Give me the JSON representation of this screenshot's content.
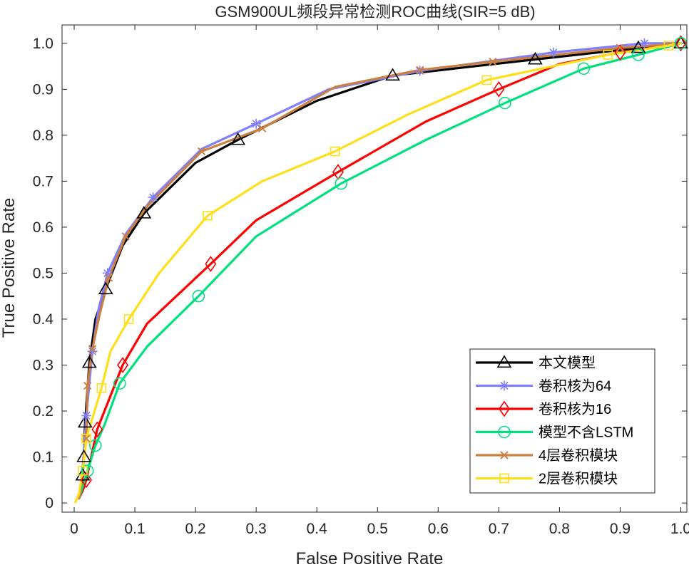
{
  "chart_data": {
    "type": "line",
    "title": "GSM900UL频段异常检测ROC曲线(SIR=5 dB)",
    "xlabel": "False Positive Rate",
    "ylabel": "True Positive Rate",
    "xlim": [
      -0.02,
      1.01
    ],
    "ylim": [
      -0.02,
      1.04
    ],
    "xticks": [
      "0",
      "0.1",
      "0.2",
      "0.3",
      "0.4",
      "0.5",
      "0.6",
      "0.7",
      "0.8",
      "0.9",
      "1.0"
    ],
    "yticks": [
      "0",
      "0.1",
      "0.2",
      "0.3",
      "0.4",
      "0.5",
      "0.6",
      "0.7",
      "0.8",
      "0.9",
      "1.0"
    ],
    "grid": false,
    "legend_position": "bottom-right",
    "series": [
      {
        "name": "本文模型",
        "color": "#000000",
        "marker": "triangle",
        "points": [
          [
            0.008,
            0.01
          ],
          [
            0.012,
            0.03
          ],
          [
            0.014,
            0.06
          ],
          [
            0.016,
            0.1
          ],
          [
            0.018,
            0.175
          ],
          [
            0.025,
            0.305
          ],
          [
            0.035,
            0.4
          ],
          [
            0.052,
            0.465
          ],
          [
            0.08,
            0.56
          ],
          [
            0.115,
            0.63
          ],
          [
            0.2,
            0.74
          ],
          [
            0.27,
            0.79
          ],
          [
            0.4,
            0.875
          ],
          [
            0.525,
            0.93
          ],
          [
            0.76,
            0.965
          ],
          [
            0.93,
            0.99
          ],
          [
            1.0,
            1.0
          ]
        ],
        "marker_points": [
          [
            0.014,
            0.06
          ],
          [
            0.016,
            0.1
          ],
          [
            0.018,
            0.175
          ],
          [
            0.025,
            0.305
          ],
          [
            0.052,
            0.465
          ],
          [
            0.115,
            0.63
          ],
          [
            0.27,
            0.79
          ],
          [
            0.525,
            0.93
          ],
          [
            0.76,
            0.965
          ],
          [
            0.93,
            0.99
          ],
          [
            1.0,
            1.0
          ]
        ]
      },
      {
        "name": "卷积核为64",
        "color": "#7f7fff",
        "marker": "asterisk",
        "points": [
          [
            0.008,
            0.01
          ],
          [
            0.012,
            0.05
          ],
          [
            0.016,
            0.11
          ],
          [
            0.02,
            0.19
          ],
          [
            0.03,
            0.33
          ],
          [
            0.04,
            0.42
          ],
          [
            0.055,
            0.5
          ],
          [
            0.085,
            0.585
          ],
          [
            0.13,
            0.665
          ],
          [
            0.21,
            0.77
          ],
          [
            0.3,
            0.825
          ],
          [
            0.42,
            0.9
          ],
          [
            0.57,
            0.94
          ],
          [
            0.79,
            0.98
          ],
          [
            0.94,
            1.0
          ],
          [
            1.0,
            1.0
          ]
        ],
        "marker_points": [
          [
            0.02,
            0.19
          ],
          [
            0.03,
            0.33
          ],
          [
            0.055,
            0.5
          ],
          [
            0.13,
            0.665
          ],
          [
            0.3,
            0.825
          ],
          [
            0.57,
            0.94
          ],
          [
            0.79,
            0.98
          ],
          [
            0.94,
            1.0
          ]
        ]
      },
      {
        "name": "卷积核为16",
        "color": "#ff0000",
        "marker": "diamond",
        "points": [
          [
            0.008,
            0.01
          ],
          [
            0.015,
            0.03
          ],
          [
            0.02,
            0.05
          ],
          [
            0.028,
            0.1
          ],
          [
            0.038,
            0.16
          ],
          [
            0.08,
            0.3
          ],
          [
            0.12,
            0.39
          ],
          [
            0.225,
            0.52
          ],
          [
            0.3,
            0.615
          ],
          [
            0.435,
            0.72
          ],
          [
            0.58,
            0.83
          ],
          [
            0.7,
            0.9
          ],
          [
            0.8,
            0.955
          ],
          [
            0.9,
            0.98
          ],
          [
            1.0,
            1.0
          ]
        ],
        "marker_points": [
          [
            0.02,
            0.05
          ],
          [
            0.038,
            0.16
          ],
          [
            0.08,
            0.3
          ],
          [
            0.225,
            0.52
          ],
          [
            0.435,
            0.72
          ],
          [
            0.7,
            0.9
          ],
          [
            0.9,
            0.98
          ],
          [
            1.0,
            1.0
          ]
        ]
      },
      {
        "name": "模型不含LSTM",
        "color": "#00e07f",
        "marker": "circle",
        "points": [
          [
            0.008,
            0.01
          ],
          [
            0.015,
            0.04
          ],
          [
            0.022,
            0.07
          ],
          [
            0.035,
            0.125
          ],
          [
            0.05,
            0.17
          ],
          [
            0.075,
            0.26
          ],
          [
            0.12,
            0.34
          ],
          [
            0.205,
            0.45
          ],
          [
            0.3,
            0.58
          ],
          [
            0.44,
            0.695
          ],
          [
            0.58,
            0.79
          ],
          [
            0.71,
            0.87
          ],
          [
            0.84,
            0.945
          ],
          [
            0.93,
            0.975
          ],
          [
            1.0,
            1.0
          ]
        ],
        "marker_points": [
          [
            0.022,
            0.07
          ],
          [
            0.035,
            0.125
          ],
          [
            0.075,
            0.26
          ],
          [
            0.205,
            0.45
          ],
          [
            0.44,
            0.695
          ],
          [
            0.71,
            0.87
          ],
          [
            0.84,
            0.945
          ],
          [
            0.93,
            0.975
          ],
          [
            1.0,
            1.0
          ]
        ]
      },
      {
        "name": "4层卷积模块",
        "color": "#cc8040",
        "marker": "cross",
        "points": [
          [
            0.008,
            0.01
          ],
          [
            0.012,
            0.045
          ],
          [
            0.016,
            0.1
          ],
          [
            0.02,
            0.14
          ],
          [
            0.022,
            0.255
          ],
          [
            0.03,
            0.335
          ],
          [
            0.042,
            0.41
          ],
          [
            0.057,
            0.49
          ],
          [
            0.085,
            0.58
          ],
          [
            0.12,
            0.645
          ],
          [
            0.21,
            0.765
          ],
          [
            0.31,
            0.815
          ],
          [
            0.43,
            0.905
          ],
          [
            0.57,
            0.942
          ],
          [
            0.69,
            0.96
          ],
          [
            0.9,
            0.99
          ],
          [
            1.0,
            1.0
          ]
        ],
        "marker_points": [
          [
            0.02,
            0.14
          ],
          [
            0.022,
            0.255
          ],
          [
            0.03,
            0.335
          ],
          [
            0.057,
            0.49
          ],
          [
            0.085,
            0.58
          ],
          [
            0.21,
            0.765
          ],
          [
            0.31,
            0.815
          ],
          [
            0.57,
            0.942
          ],
          [
            0.69,
            0.96
          ],
          [
            0.9,
            0.99
          ]
        ]
      },
      {
        "name": "2层卷积模块",
        "color": "#ffde1a",
        "marker": "square",
        "points": [
          [
            0.002,
            0.002
          ],
          [
            0.008,
            0.02
          ],
          [
            0.014,
            0.07
          ],
          [
            0.02,
            0.14
          ],
          [
            0.045,
            0.25
          ],
          [
            0.06,
            0.33
          ],
          [
            0.09,
            0.4
          ],
          [
            0.14,
            0.5
          ],
          [
            0.22,
            0.625
          ],
          [
            0.31,
            0.7
          ],
          [
            0.43,
            0.765
          ],
          [
            0.55,
            0.845
          ],
          [
            0.68,
            0.92
          ],
          [
            0.88,
            0.975
          ],
          [
            0.98,
            0.995
          ],
          [
            1.0,
            1.0
          ]
        ],
        "marker_points": [
          [
            0.014,
            0.07
          ],
          [
            0.02,
            0.14
          ],
          [
            0.045,
            0.25
          ],
          [
            0.09,
            0.4
          ],
          [
            0.22,
            0.625
          ],
          [
            0.43,
            0.765
          ],
          [
            0.68,
            0.92
          ],
          [
            0.88,
            0.975
          ],
          [
            0.98,
            0.995
          ]
        ]
      }
    ]
  }
}
